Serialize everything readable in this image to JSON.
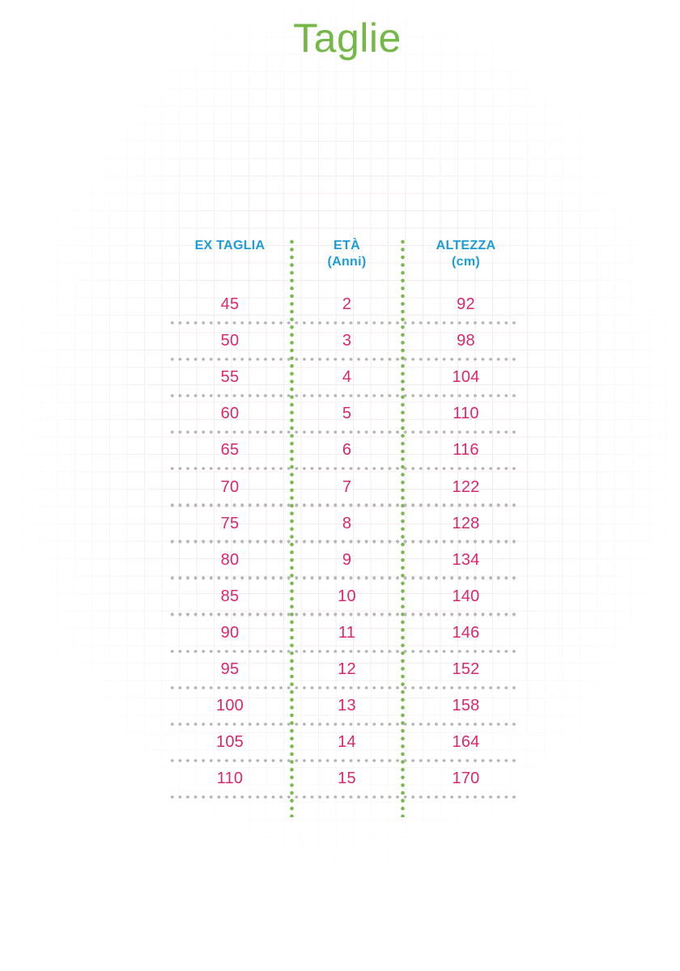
{
  "page": {
    "title": "Taglie"
  },
  "colors": {
    "accent-green": "#74b847",
    "dot-green": "#76b94c",
    "header-cyan": "#1b9dd9",
    "value-pink": "#d9286f",
    "dot-gray": "#b4b4b4",
    "grid-line": "#f4ecec"
  },
  "table": {
    "headers": [
      {
        "line1": "EX TAGLIA",
        "line2": ""
      },
      {
        "line1": "ETÀ",
        "line2": "(Anni)"
      },
      {
        "line1": "ALTEZZA",
        "line2": "(cm)"
      }
    ],
    "rows": [
      {
        "ex_taglia": "45",
        "eta": "2",
        "altezza": "92"
      },
      {
        "ex_taglia": "50",
        "eta": "3",
        "altezza": "98"
      },
      {
        "ex_taglia": "55",
        "eta": "4",
        "altezza": "104"
      },
      {
        "ex_taglia": "60",
        "eta": "5",
        "altezza": "110"
      },
      {
        "ex_taglia": "65",
        "eta": "6",
        "altezza": "116"
      },
      {
        "ex_taglia": "70",
        "eta": "7",
        "altezza": "122"
      },
      {
        "ex_taglia": "75",
        "eta": "8",
        "altezza": "128"
      },
      {
        "ex_taglia": "80",
        "eta": "9",
        "altezza": "134"
      },
      {
        "ex_taglia": "85",
        "eta": "10",
        "altezza": "140"
      },
      {
        "ex_taglia": "90",
        "eta": "11",
        "altezza": "146"
      },
      {
        "ex_taglia": "95",
        "eta": "12",
        "altezza": "152"
      },
      {
        "ex_taglia": "100",
        "eta": "13",
        "altezza": "158"
      },
      {
        "ex_taglia": "105",
        "eta": "14",
        "altezza": "164"
      },
      {
        "ex_taglia": "110",
        "eta": "15",
        "altezza": "170"
      }
    ]
  },
  "chart_data": {
    "type": "table",
    "title": "Taglie",
    "columns": [
      "EX TAGLIA",
      "ETÀ (Anni)",
      "ALTEZZA (cm)"
    ],
    "rows": [
      [
        45,
        2,
        92
      ],
      [
        50,
        3,
        98
      ],
      [
        55,
        4,
        104
      ],
      [
        60,
        5,
        110
      ],
      [
        65,
        6,
        116
      ],
      [
        70,
        7,
        122
      ],
      [
        75,
        8,
        128
      ],
      [
        80,
        9,
        134
      ],
      [
        85,
        10,
        140
      ],
      [
        90,
        11,
        146
      ],
      [
        95,
        12,
        152
      ],
      [
        100,
        13,
        158
      ],
      [
        105,
        14,
        164
      ],
      [
        110,
        15,
        170
      ]
    ]
  }
}
